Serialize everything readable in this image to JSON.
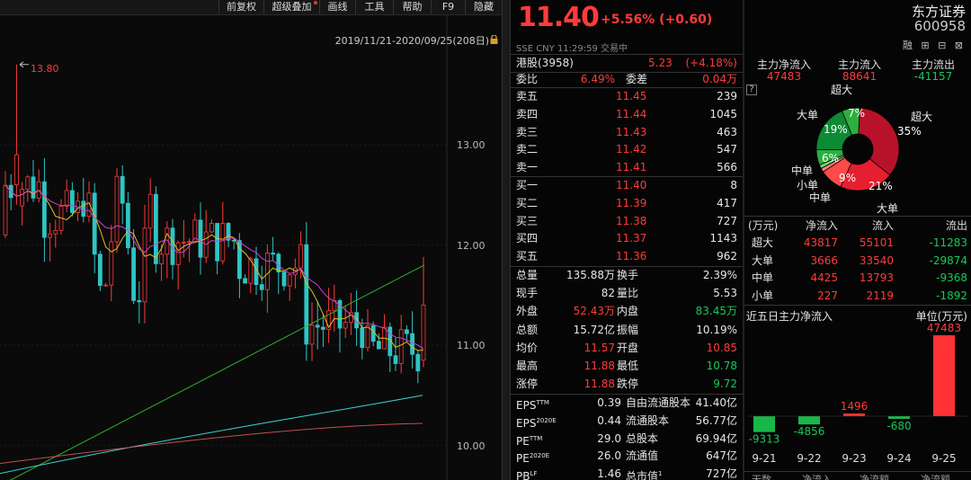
{
  "toolbar": {
    "items": [
      "前复权",
      "超级叠加",
      "画线",
      "工具",
      "帮助",
      "F9",
      "隐藏"
    ]
  },
  "chart": {
    "range": "2019/11/21-2020/09/25(208日)",
    "high_label": "13.80",
    "y_labels": [
      "13.00",
      "12.00",
      "11.00",
      "10.00"
    ]
  },
  "chart_data": {
    "type": "candlestick",
    "y_ticks": [
      13.0,
      12.0,
      11.0,
      10.0
    ],
    "high_marker": 13.8
  },
  "quote": {
    "price": "11.40",
    "change": "+5.56% (+0.60)",
    "sub": "SSE  CNY  11:29:59  交易中",
    "hk": {
      "label": "港股(3958)",
      "price": "5.23",
      "pct": "(+4.18%)"
    },
    "webi": {
      "l1": "委比",
      "v1": "6.49%",
      "l2": "委差",
      "v2": "0.04万"
    },
    "asks": [
      {
        "l": "卖五",
        "p": "11.45",
        "v": "239"
      },
      {
        "l": "卖四",
        "p": "11.44",
        "v": "1045"
      },
      {
        "l": "卖三",
        "p": "11.43",
        "v": "463"
      },
      {
        "l": "卖二",
        "p": "11.42",
        "v": "547"
      },
      {
        "l": "卖一",
        "p": "11.41",
        "v": "566"
      }
    ],
    "bids": [
      {
        "l": "买一",
        "p": "11.40",
        "v": "8"
      },
      {
        "l": "买二",
        "p": "11.39",
        "v": "417"
      },
      {
        "l": "买三",
        "p": "11.38",
        "v": "727"
      },
      {
        "l": "买四",
        "p": "11.37",
        "v": "1143"
      },
      {
        "l": "买五",
        "p": "11.36",
        "v": "962"
      }
    ],
    "stats": [
      {
        "l1": "总量",
        "v1": "135.88万",
        "l2": "换手",
        "v2": "2.39%",
        "c1": "wht",
        "c2": "wht"
      },
      {
        "l1": "现手",
        "v1": "82",
        "l2": "量比",
        "v2": "5.53",
        "c1": "wht",
        "c2": "wht"
      },
      {
        "l1": "外盘",
        "v1": "52.43万",
        "l2": "内盘",
        "v2": "83.45万",
        "c1": "red",
        "c2": "green"
      },
      {
        "l1": "总额",
        "v1": "15.72亿",
        "l2": "振幅",
        "v2": "10.19%",
        "c1": "wht",
        "c2": "wht"
      },
      {
        "l1": "均价",
        "v1": "11.57",
        "l2": "开盘",
        "v2": "10.85",
        "c1": "red",
        "c2": "red"
      },
      {
        "l1": "最高",
        "v1": "11.88",
        "l2": "最低",
        "v2": "10.78",
        "c1": "red",
        "c2": "green"
      },
      {
        "l1": "涨停",
        "v1": "11.88",
        "l2": "跌停",
        "v2": "9.72",
        "c1": "red",
        "c2": "green"
      }
    ],
    "fin": [
      {
        "l1": "EPS",
        "s1": "TTM",
        "v1": "0.39",
        "l2": "自由流通股本",
        "v2": "41.40亿"
      },
      {
        "l1": "EPS",
        "s1": "2020E",
        "v1": "0.44",
        "l2": "流通股本",
        "v2": "56.77亿"
      },
      {
        "l1": "PE",
        "s1": "TTM",
        "v1": "29.0",
        "l2": "总股本",
        "v2": "69.94亿"
      },
      {
        "l1": "PE",
        "s1": "2020E",
        "v1": "26.0",
        "l2": "流通值",
        "v2": "647亿"
      },
      {
        "l1": "PB",
        "s1": "LF",
        "v1": "1.46",
        "l2": "总市值",
        "s2": "1",
        "v2": "727亿"
      }
    ]
  },
  "right": {
    "name": "东方证券",
    "code": "600958",
    "icons": "融 ⊞ ⊟ ⊠",
    "flow_heads": [
      "主力净流入",
      "主力流入",
      "主力流出"
    ],
    "flow_vals": [
      "47483",
      "88641",
      "-41157"
    ],
    "question": "?",
    "pie": {
      "labels": {
        "chaoda_top": "超大",
        "chaoda_right": "超大",
        "dadan_left": "大单",
        "dadan_bot": "大单",
        "zhong1": "中单",
        "xiaodan": "小单",
        "zhong2": "中单"
      },
      "pcts": {
        "p35": "35%",
        "p21": "21%",
        "p9": "9%",
        "p6": "6%",
        "p19": "19%",
        "p7": "7%"
      }
    },
    "table_head": [
      "(万元)",
      "净流入",
      "流入",
      "流出"
    ],
    "table": [
      {
        "n": "超大",
        "a": "43817",
        "b": "55101",
        "c": "-11283"
      },
      {
        "n": "大单",
        "a": "3666",
        "b": "33540",
        "c": "-29874"
      },
      {
        "n": "中单",
        "a": "4425",
        "b": "13793",
        "c": "-9368"
      },
      {
        "n": "小单",
        "a": "227",
        "b": "2119",
        "c": "-1892"
      }
    ],
    "five_title": "近五日主力净流入",
    "five_unit": "单位(万元)",
    "five": [
      {
        "d": "9-21",
        "v": "-9313"
      },
      {
        "d": "9-22",
        "v": "-4856"
      },
      {
        "d": "9-23",
        "v": "1496"
      },
      {
        "d": "9-24",
        "v": "-680"
      },
      {
        "d": "9-25",
        "v": "47483"
      }
    ],
    "bottom_head": [
      "天数",
      "净流入",
      "净流额",
      "净流额"
    ]
  },
  "colors": {
    "up": "#ff3b3b",
    "down": "#18c85a",
    "cyan": "#2ec4c4"
  }
}
